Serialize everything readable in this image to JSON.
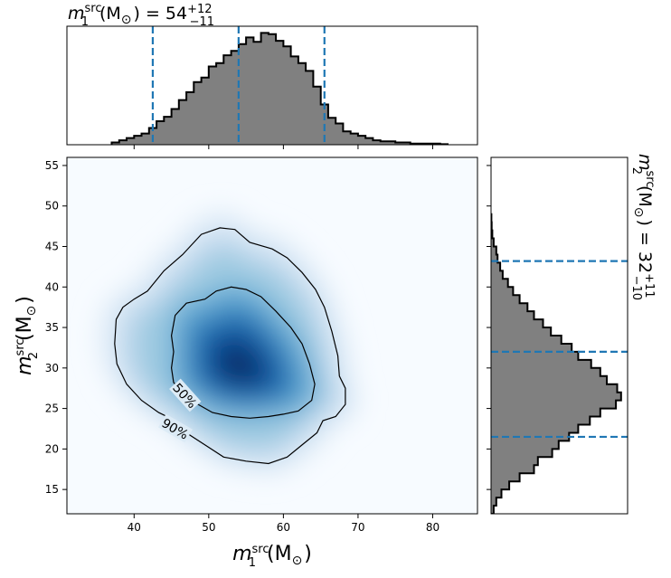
{
  "chart_data": {
    "type": "heatmap",
    "title_m1": {
      "symbol": "m",
      "sub": "1",
      "sup": "src",
      "unit": "(M",
      "sun": "⊙",
      "close": ")",
      "eq": "= 54",
      "err_plus": "+12",
      "err_minus": "−11"
    },
    "title_m2": {
      "symbol": "m",
      "sub": "2",
      "sup": "src",
      "unit": "(M",
      "sun": "⊙",
      "close": ")",
      "eq": "= 32",
      "err_plus": "+11",
      "err_minus": "−10"
    },
    "xlabel": {
      "symbol": "m",
      "sub": "1",
      "sup": "src",
      "unit": "(M",
      "sun": "⊙",
      "close": ")"
    },
    "ylabel": {
      "symbol": "m",
      "sub": "2",
      "sup": "src",
      "unit": "(M",
      "sun": "⊙",
      "close": ")"
    },
    "xlim": [
      31,
      86
    ],
    "ylim": [
      12,
      56
    ],
    "xticks": [
      40,
      50,
      60,
      70,
      80
    ],
    "yticks": [
      15,
      20,
      25,
      30,
      35,
      40,
      45,
      50,
      55
    ],
    "colormap": "Blues",
    "density_peak": [
      54,
      30
    ],
    "contours": [
      {
        "label": "50%",
        "points": [
          [
            45.0,
            34.0
          ],
          [
            45.5,
            36.5
          ],
          [
            47.0,
            38.0
          ],
          [
            49.5,
            38.5
          ],
          [
            51.0,
            39.5
          ],
          [
            53.0,
            40.0
          ],
          [
            55.0,
            39.7
          ],
          [
            57.0,
            38.8
          ],
          [
            59.0,
            37.0
          ],
          [
            61.0,
            35.0
          ],
          [
            62.5,
            33.0
          ],
          [
            63.5,
            30.5
          ],
          [
            64.2,
            28.0
          ],
          [
            63.8,
            26.0
          ],
          [
            62.0,
            24.7
          ],
          [
            60.0,
            24.3
          ],
          [
            58.0,
            24.0
          ],
          [
            55.5,
            23.8
          ],
          [
            53.0,
            24.0
          ],
          [
            50.5,
            24.5
          ],
          [
            48.0,
            25.8
          ],
          [
            46.5,
            27.0
          ],
          [
            45.3,
            28.2
          ],
          [
            45.0,
            30.0
          ],
          [
            45.3,
            32.0
          ],
          [
            45.0,
            34.0
          ]
        ]
      },
      {
        "label": "90%",
        "points": [
          [
            41.8,
            39.5
          ],
          [
            44.0,
            42.0
          ],
          [
            46.5,
            44.0
          ],
          [
            49.0,
            46.5
          ],
          [
            51.5,
            47.3
          ],
          [
            53.5,
            47.1
          ],
          [
            55.5,
            45.5
          ],
          [
            58.5,
            44.7
          ],
          [
            60.5,
            43.6
          ],
          [
            62.5,
            41.8
          ],
          [
            64.3,
            39.7
          ],
          [
            65.5,
            37.5
          ],
          [
            66.5,
            34.5
          ],
          [
            67.3,
            31.5
          ],
          [
            67.5,
            29.0
          ],
          [
            68.3,
            27.5
          ],
          [
            68.3,
            25.5
          ],
          [
            67.0,
            24.0
          ],
          [
            65.3,
            23.5
          ],
          [
            64.5,
            22.0
          ],
          [
            62.5,
            20.5
          ],
          [
            60.5,
            19.0
          ],
          [
            58.0,
            18.2
          ],
          [
            55.0,
            18.5
          ],
          [
            52.0,
            19.0
          ],
          [
            49.5,
            20.5
          ],
          [
            47.0,
            22.0
          ],
          [
            45.3,
            23.6
          ],
          [
            43.3,
            24.5
          ],
          [
            41.0,
            26.0
          ],
          [
            39.0,
            28.0
          ],
          [
            37.7,
            30.5
          ],
          [
            37.4,
            33.0
          ],
          [
            37.6,
            36.0
          ],
          [
            38.5,
            37.5
          ],
          [
            40.0,
            38.5
          ],
          [
            41.8,
            39.5
          ]
        ]
      }
    ],
    "contour_labels": [
      "50%",
      "90%"
    ],
    "m1_histogram": {
      "bin_start": 37,
      "bin_width": 1,
      "counts": [
        0.02,
        0.04,
        0.06,
        0.08,
        0.1,
        0.15,
        0.21,
        0.25,
        0.32,
        0.4,
        0.47,
        0.56,
        0.6,
        0.7,
        0.73,
        0.8,
        0.84,
        0.9,
        0.96,
        0.92,
        1.0,
        0.99,
        0.93,
        0.88,
        0.79,
        0.73,
        0.66,
        0.52,
        0.36,
        0.24,
        0.19,
        0.12,
        0.1,
        0.08,
        0.06,
        0.04,
        0.03,
        0.03,
        0.02,
        0.02,
        0.01,
        0.01,
        0.01,
        0.01,
        0.005
      ],
      "quantiles": [
        42.5,
        54,
        65.5
      ],
      "ylim": [
        0,
        1.06
      ]
    },
    "m2_histogram": {
      "bin_start": 12,
      "bin_width": 1,
      "counts": [
        0.02,
        0.04,
        0.08,
        0.14,
        0.22,
        0.33,
        0.36,
        0.47,
        0.52,
        0.6,
        0.67,
        0.76,
        0.84,
        0.96,
        1.0,
        0.97,
        0.89,
        0.84,
        0.77,
        0.67,
        0.62,
        0.54,
        0.46,
        0.4,
        0.33,
        0.28,
        0.22,
        0.17,
        0.13,
        0.09,
        0.07,
        0.05,
        0.04,
        0.02,
        0.01,
        0.005,
        0.003
      ],
      "quantiles": [
        21.5,
        32,
        43.2
      ],
      "xlim": [
        0,
        1.05
      ]
    },
    "colors": {
      "hist_fill": "#808080",
      "hist_edge": "#000000",
      "quantile_line": "#1f77b4",
      "contour": "#000000"
    }
  }
}
